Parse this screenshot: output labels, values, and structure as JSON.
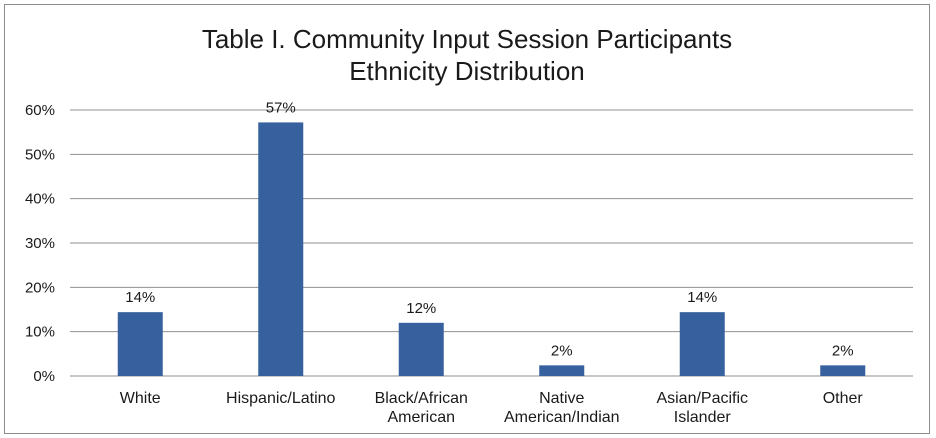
{
  "chart_data": {
    "type": "bar",
    "title_line1": "Table I. Community Input Session Participants",
    "title_line2": "Ethnicity Distribution",
    "xlabel": "",
    "ylabel": "",
    "ylim": [
      0,
      60
    ],
    "y_ticks": [
      "0%",
      "10%",
      "20%",
      "30%",
      "40%",
      "50%",
      "60%"
    ],
    "y_tick_values": [
      0,
      10,
      20,
      30,
      40,
      50,
      60
    ],
    "categories": [
      [
        "White"
      ],
      [
        "Hispanic/Latino"
      ],
      [
        "Black/African",
        "American"
      ],
      [
        "Native",
        "American/Indian"
      ],
      [
        "Asian/Pacific",
        "Islander"
      ],
      [
        "Other"
      ]
    ],
    "values": [
      14.4,
      57.2,
      12.0,
      2.4,
      14.4,
      2.4
    ],
    "data_labels": [
      "14%",
      "57%",
      "12%",
      "2%",
      "14%",
      "2%"
    ],
    "grid": true,
    "legend": "none",
    "bar_color": "#36609e",
    "grid_color": "#8f8f8f"
  }
}
